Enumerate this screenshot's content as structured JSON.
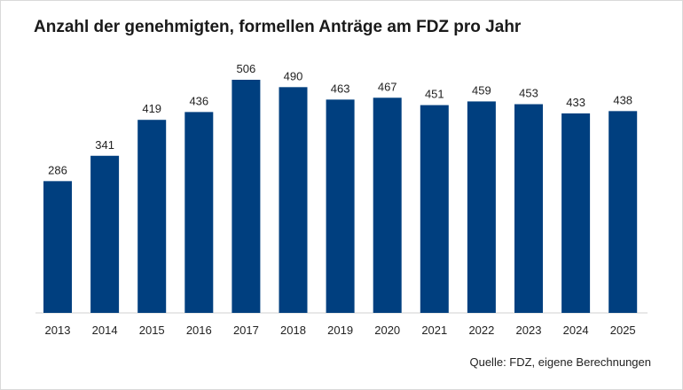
{
  "chart_data": {
    "type": "bar",
    "title": "Anzahl der genehmigten, formellen Anträge am FDZ pro Jahr",
    "categories": [
      "2013",
      "2014",
      "2015",
      "2016",
      "2017",
      "2018",
      "2019",
      "2020",
      "2021",
      "2022",
      "2023",
      "2024",
      "2025"
    ],
    "values": [
      286,
      341,
      419,
      436,
      506,
      490,
      463,
      467,
      451,
      459,
      453,
      433,
      438
    ],
    "ylim": [
      0,
      506
    ],
    "grid": false,
    "bar_color": "#003f7f",
    "source": "Quelle: FDZ, eigene Berechnungen"
  }
}
